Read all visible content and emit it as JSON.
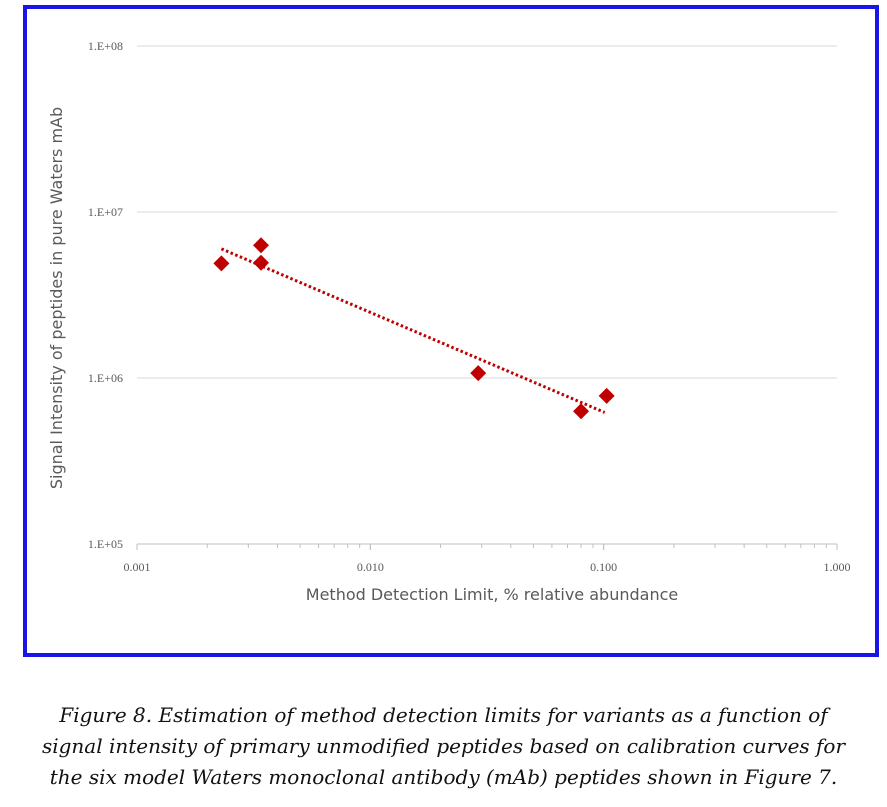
{
  "chart_data": {
    "type": "scatter",
    "xlabel": "Method Detection Limit, % relative abundance",
    "ylabel": "Signal Intensity of peptides in pure Waters mAb",
    "xscale": "log",
    "yscale": "log",
    "xlim": [
      0.001,
      1.0
    ],
    "ylim": [
      100000,
      100000000
    ],
    "x_ticks": [
      0.001,
      0.01,
      0.1,
      1.0
    ],
    "x_tick_labels": [
      "0.001",
      "0.010",
      "0.100",
      "1.000"
    ],
    "y_ticks": [
      100000,
      1000000,
      10000000,
      100000000
    ],
    "y_tick_labels": [
      "1.E+05",
      "1.E+06",
      "1.E+07",
      "1.E+08"
    ],
    "grid": "horizontal",
    "legend": "none",
    "series": [
      {
        "marker": "diamond",
        "color": "#c00000",
        "points": [
          {
            "x": 0.0023,
            "y": 4900000
          },
          {
            "x": 0.0034,
            "y": 6300000
          },
          {
            "x": 0.0034,
            "y": 4950000
          },
          {
            "x": 0.029,
            "y": 1070000
          },
          {
            "x": 0.08,
            "y": 630000
          },
          {
            "x": 0.103,
            "y": 780000
          }
        ]
      }
    ],
    "trendline": {
      "style": "dotted",
      "color": "#c00000",
      "x": [
        0.0023,
        0.101
      ],
      "y": [
        6000000,
        620000
      ]
    }
  },
  "caption": {
    "lines": [
      "Figure 8.  Estimation of method detection limits for variants as a function of",
      "signal intensity of primary unmodified peptides based on calibration curves for",
      "the six model Waters monoclonal antibody (mAb) peptides shown in Figure 7."
    ]
  }
}
